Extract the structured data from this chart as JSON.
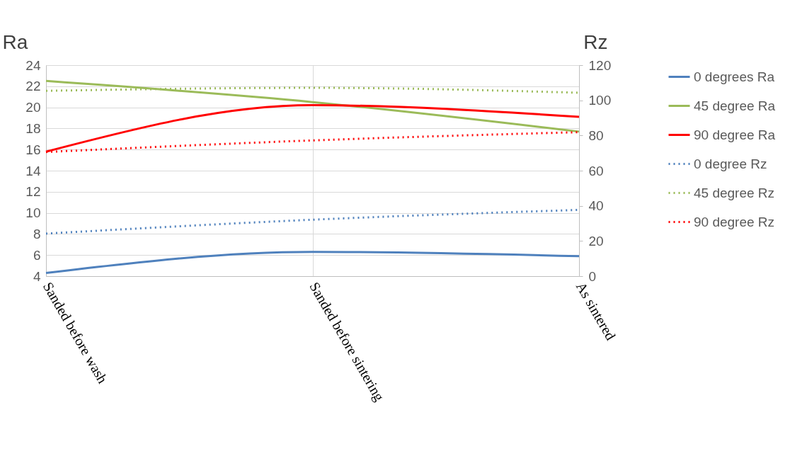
{
  "chart_data": {
    "type": "line",
    "categories": [
      "Sanded before wash",
      "Sanded before sintering",
      "As sintered"
    ],
    "ylabel": "Ra",
    "y2label": "Rz",
    "ylim": [
      4,
      24
    ],
    "yticks": [
      4,
      6,
      8,
      10,
      12,
      14,
      16,
      18,
      20,
      22,
      24
    ],
    "y2lim": [
      0,
      120
    ],
    "y2ticks": [
      0,
      20,
      40,
      60,
      80,
      100,
      120
    ],
    "grid": true,
    "legend": "right",
    "series": [
      {
        "name": "0 degrees Ra",
        "color": "#4f81bd",
        "values": [
          4.3,
          6.3,
          5.9
        ],
        "line_style": "solid"
      },
      {
        "name": "45 degree Ra",
        "color": "#9bbb59",
        "values": [
          22.5,
          20.5,
          17.7
        ],
        "line_style": "solid"
      },
      {
        "name": "90 degree Ra",
        "color": "#ff0000",
        "values": [
          15.8,
          20.2,
          19.1
        ],
        "line_style": "solid"
      },
      {
        "name": "0 degree Rz",
        "color": "#4f81bd",
        "values": [
          24.2,
          32.1,
          37.7
        ],
        "axis": "y2",
        "line_style": "dotted"
      },
      {
        "name": "45 degree Rz",
        "color": "#9bbb59",
        "values": [
          105.4,
          107.1,
          104.3
        ],
        "axis": "y2",
        "line_style": "dotted"
      },
      {
        "name": "90 degree Rz",
        "color": "#ff0000",
        "values": [
          70.6,
          77.2,
          81.9
        ],
        "axis": "y2",
        "line_style": "dotted"
      }
    ]
  }
}
